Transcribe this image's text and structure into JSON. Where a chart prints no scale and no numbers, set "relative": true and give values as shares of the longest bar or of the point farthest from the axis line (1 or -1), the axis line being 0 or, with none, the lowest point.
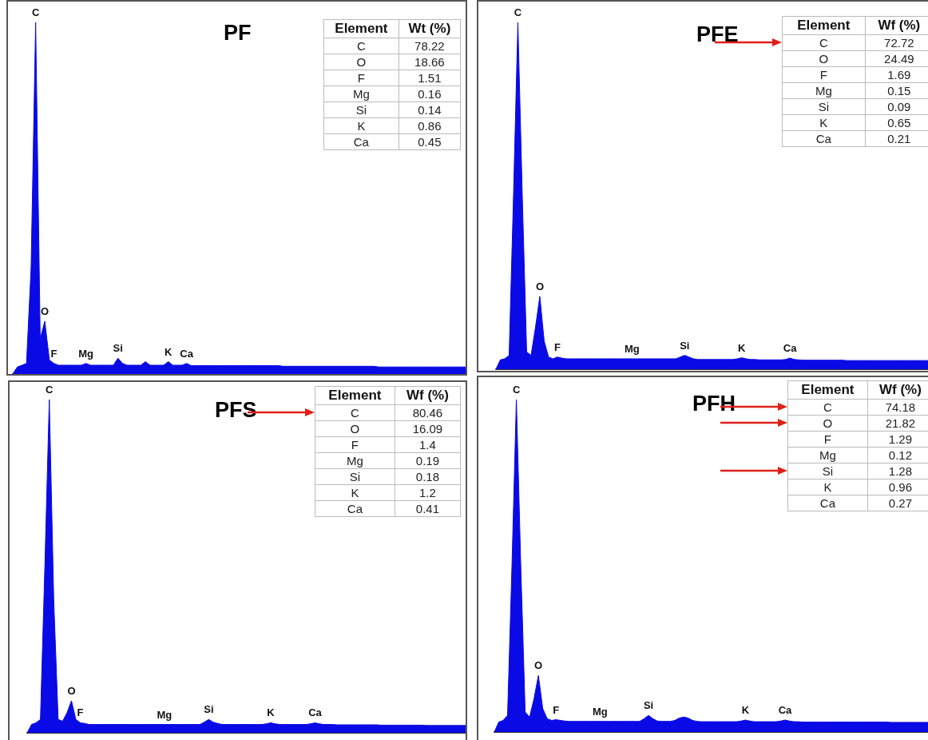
{
  "chart_data": [
    {
      "type": "area",
      "title": "PF",
      "relative": true,
      "tick_labels": false,
      "color": "#0a0ae6",
      "categories": [
        null,
        null,
        null,
        null,
        null,
        "C",
        null,
        "O",
        null,
        "F",
        null,
        null,
        null,
        null,
        null,
        null,
        "Mg",
        null,
        null,
        null,
        null,
        null,
        null,
        "Si",
        null,
        null,
        null,
        null,
        null,
        null,
        null,
        null,
        null,
        null,
        "K",
        null,
        null,
        null,
        "Ca",
        null,
        null,
        null,
        null,
        null,
        null,
        null,
        null,
        null,
        null,
        null,
        null,
        null,
        null,
        null,
        null,
        null,
        null,
        null,
        null,
        null,
        null,
        null,
        null,
        null,
        null,
        null,
        null,
        null,
        null,
        null,
        null,
        null,
        null,
        null,
        null,
        null,
        null,
        null,
        null,
        null,
        null,
        null,
        null,
        null,
        null,
        null,
        null,
        null,
        null,
        null,
        null,
        null,
        null,
        null,
        null,
        null,
        null,
        null,
        null,
        null
      ],
      "values": [
        0,
        0.02,
        0.025,
        0.03,
        0.3,
        1,
        0.1,
        0.15,
        0.04,
        0.03,
        0.025,
        0.025,
        0.025,
        0.025,
        0.025,
        0.025,
        0.03,
        0.025,
        0.025,
        0.025,
        0.025,
        0.025,
        0.025,
        0.045,
        0.03,
        0.025,
        0.025,
        0.025,
        0.025,
        0.035,
        0.025,
        0.025,
        0.025,
        0.025,
        0.035,
        0.025,
        0.025,
        0.025,
        0.03,
        0.024,
        0.024,
        0.024,
        0.024,
        0.024,
        0.024,
        0.024,
        0.024,
        0.024,
        0.024,
        0.024,
        0.024,
        0.024,
        0.024,
        0.024,
        0.024,
        0.024,
        0.024,
        0.024,
        0.024,
        0.022,
        0.022,
        0.022,
        0.022,
        0.022,
        0.022,
        0.022,
        0.022,
        0.022,
        0.022,
        0.022,
        0.022,
        0.022,
        0.022,
        0.022,
        0.022,
        0.022,
        0.022,
        0.022,
        0.022,
        0.022,
        0.02,
        0.02,
        0.02,
        0.02,
        0.02,
        0.02,
        0.02,
        0.02,
        0.02,
        0.02,
        0.02,
        0.02,
        0.02,
        0.02,
        0.02,
        0.02,
        0.02,
        0.02,
        0.02,
        0.02
      ]
    },
    {
      "type": "other",
      "xlabel": "Element",
      "ylabel": "Wt (%)",
      "categories": [
        "C",
        "O",
        "F",
        "Mg",
        "Si",
        "K",
        "Ca"
      ],
      "values": [
        78.22,
        18.66,
        1.51,
        0.16,
        0.14,
        0.86,
        0.45
      ],
      "data_labels": true
    },
    {
      "type": "area",
      "title": "PFE",
      "relative": true,
      "tick_labels": false,
      "color": "#0a0ae6",
      "categories": [
        null,
        null,
        null,
        null,
        null,
        "C",
        null,
        null,
        null,
        null,
        "O",
        null,
        null,
        null,
        "F",
        null,
        null,
        null,
        null,
        null,
        null,
        null,
        null,
        null,
        null,
        null,
        null,
        null,
        null,
        null,
        null,
        "Mg",
        null,
        null,
        null,
        null,
        null,
        null,
        null,
        null,
        null,
        null,
        null,
        "Si",
        null,
        null,
        null,
        null,
        null,
        null,
        null,
        null,
        null,
        null,
        null,
        null,
        "K",
        null,
        null,
        null,
        null,
        null,
        null,
        null,
        null,
        null,
        null,
        "Ca",
        null,
        null,
        null,
        null,
        null,
        null,
        null,
        null,
        null,
        null,
        null,
        null,
        null,
        null,
        null,
        null,
        null,
        null,
        null,
        null,
        null,
        null,
        null,
        null,
        null,
        null,
        null,
        null,
        null,
        null,
        null,
        null
      ],
      "values": [
        0,
        0.027,
        0.03,
        0.04,
        0.5,
        1,
        0.5,
        0.05,
        0.04,
        0.12,
        0.21,
        0.08,
        0.035,
        0.03,
        0.035,
        0.032,
        0.03,
        0.03,
        0.03,
        0.03,
        0.03,
        0.03,
        0.03,
        0.03,
        0.03,
        0.03,
        0.03,
        0.03,
        0.03,
        0.03,
        0.03,
        0.03,
        0.03,
        0.03,
        0.03,
        0.03,
        0.03,
        0.03,
        0.03,
        0.03,
        0.03,
        0.03,
        0.035,
        0.04,
        0.035,
        0.03,
        0.028,
        0.028,
        0.028,
        0.028,
        0.028,
        0.028,
        0.028,
        0.028,
        0.028,
        0.03,
        0.033,
        0.03,
        0.028,
        0.028,
        0.027,
        0.027,
        0.027,
        0.027,
        0.027,
        0.027,
        0.028,
        0.032,
        0.028,
        0.027,
        0.026,
        0.026,
        0.026,
        0.026,
        0.026,
        0.026,
        0.026,
        0.026,
        0.026,
        0.026,
        0.025,
        0.025,
        0.025,
        0.025,
        0.025,
        0.025,
        0.025,
        0.025,
        0.025,
        0.025,
        0.025,
        0.025,
        0.025,
        0.025,
        0.025,
        0.025,
        0.025,
        0.025,
        0.025,
        0.025
      ]
    },
    {
      "type": "other",
      "xlabel": "Element",
      "ylabel": "Wf (%)",
      "categories": [
        "C",
        "O",
        "F",
        "Mg",
        "Si",
        "K",
        "Ca"
      ],
      "values": [
        72.72,
        24.49,
        1.69,
        0.15,
        0.09,
        0.65,
        0.21
      ],
      "data_labels": true
    },
    {
      "type": "area",
      "title": "PFS",
      "relative": true,
      "tick_labels": false,
      "color": "#0a0ae6",
      "categories": [
        null,
        null,
        null,
        null,
        null,
        "C",
        null,
        null,
        null,
        null,
        "O",
        null,
        "F",
        null,
        null,
        null,
        null,
        null,
        null,
        null,
        null,
        null,
        null,
        null,
        null,
        null,
        null,
        null,
        null,
        null,
        null,
        "Mg",
        null,
        null,
        null,
        null,
        null,
        null,
        null,
        null,
        null,
        "Si",
        null,
        null,
        null,
        null,
        null,
        null,
        null,
        null,
        null,
        null,
        null,
        null,
        null,
        "K",
        null,
        null,
        null,
        null,
        null,
        null,
        null,
        null,
        null,
        "Ca",
        null,
        null,
        null,
        null,
        null,
        null,
        null,
        null,
        null,
        null,
        null,
        null,
        null,
        null,
        null,
        null,
        null,
        null,
        null,
        null,
        null,
        null,
        null,
        null,
        null,
        null,
        null,
        null,
        null,
        null,
        null,
        null,
        null,
        null
      ],
      "values": [
        0,
        0.025,
        0.03,
        0.04,
        0.5,
        1,
        0.4,
        0.04,
        0.035,
        0.06,
        0.096,
        0.04,
        0.03,
        0.028,
        0.025,
        0.025,
        0.025,
        0.025,
        0.025,
        0.025,
        0.025,
        0.025,
        0.025,
        0.025,
        0.025,
        0.025,
        0.025,
        0.025,
        0.025,
        0.025,
        0.025,
        0.025,
        0.025,
        0.025,
        0.025,
        0.025,
        0.025,
        0.025,
        0.025,
        0.025,
        0.032,
        0.04,
        0.032,
        0.028,
        0.025,
        0.025,
        0.025,
        0.025,
        0.025,
        0.025,
        0.025,
        0.025,
        0.025,
        0.025,
        0.027,
        0.03,
        0.027,
        0.025,
        0.025,
        0.025,
        0.025,
        0.025,
        0.025,
        0.025,
        0.027,
        0.03,
        0.027,
        0.025,
        0.025,
        0.025,
        0.024,
        0.024,
        0.024,
        0.024,
        0.024,
        0.024,
        0.024,
        0.024,
        0.024,
        0.024,
        0.023,
        0.023,
        0.023,
        0.023,
        0.023,
        0.023,
        0.023,
        0.023,
        0.023,
        0.023,
        0.022,
        0.022,
        0.022,
        0.022,
        0.022,
        0.022,
        0.022,
        0.022,
        0.022,
        0.022
      ]
    },
    {
      "type": "other",
      "xlabel": "Element",
      "ylabel": "Wf (%)",
      "categories": [
        "C",
        "O",
        "F",
        "Mg",
        "Si",
        "K",
        "Ca"
      ],
      "values": [
        80.46,
        16.09,
        1.4,
        0.19,
        0.18,
        1.2,
        0.41
      ],
      "data_labels": true
    },
    {
      "type": "area",
      "title": "PFH",
      "relative": true,
      "tick_labels": false,
      "color": "#0a0ae6",
      "categories": [
        null,
        null,
        null,
        null,
        null,
        "C",
        null,
        null,
        null,
        null,
        "O",
        null,
        null,
        null,
        "F",
        null,
        null,
        null,
        null,
        null,
        null,
        null,
        null,
        null,
        "Mg",
        null,
        null,
        null,
        null,
        null,
        null,
        null,
        null,
        null,
        null,
        "Si",
        null,
        null,
        null,
        null,
        null,
        null,
        null,
        null,
        null,
        null,
        null,
        null,
        null,
        null,
        null,
        null,
        null,
        null,
        null,
        null,
        null,
        "K",
        null,
        null,
        null,
        null,
        null,
        null,
        null,
        null,
        "Ca",
        null,
        null,
        null,
        null,
        null,
        null,
        null,
        null,
        null,
        null,
        null,
        null,
        null,
        null,
        null,
        null,
        null,
        null,
        null,
        null,
        null,
        null,
        null,
        null,
        null,
        null,
        null,
        null,
        null,
        null,
        null,
        null,
        null
      ],
      "values": [
        0,
        0.03,
        0.035,
        0.05,
        0.5,
        1,
        0.5,
        0.06,
        0.045,
        0.1,
        0.17,
        0.07,
        0.04,
        0.035,
        0.037,
        0.035,
        0.033,
        0.032,
        0.032,
        0.032,
        0.032,
        0.032,
        0.032,
        0.032,
        0.032,
        0.032,
        0.032,
        0.032,
        0.032,
        0.032,
        0.032,
        0.032,
        0.032,
        0.032,
        0.04,
        0.05,
        0.04,
        0.033,
        0.032,
        0.032,
        0.032,
        0.035,
        0.042,
        0.045,
        0.042,
        0.035,
        0.032,
        0.031,
        0.031,
        0.031,
        0.031,
        0.031,
        0.031,
        0.031,
        0.031,
        0.031,
        0.033,
        0.036,
        0.033,
        0.031,
        0.031,
        0.031,
        0.031,
        0.031,
        0.031,
        0.033,
        0.036,
        0.033,
        0.031,
        0.031,
        0.03,
        0.03,
        0.03,
        0.03,
        0.03,
        0.03,
        0.03,
        0.03,
        0.03,
        0.03,
        0.03,
        0.03,
        0.03,
        0.03,
        0.03,
        0.03,
        0.03,
        0.03,
        0.03,
        0.03,
        0.029,
        0.029,
        0.029,
        0.029,
        0.029,
        0.029,
        0.029,
        0.029,
        0.029,
        0.029
      ]
    },
    {
      "type": "other",
      "xlabel": "Element",
      "ylabel": "Wf (%)",
      "categories": [
        "C",
        "O",
        "F",
        "Mg",
        "Si",
        "K",
        "Ca"
      ],
      "values": [
        74.18,
        21.82,
        1.29,
        0.12,
        1.28,
        0.96,
        0.27
      ],
      "data_labels": true
    }
  ]
}
